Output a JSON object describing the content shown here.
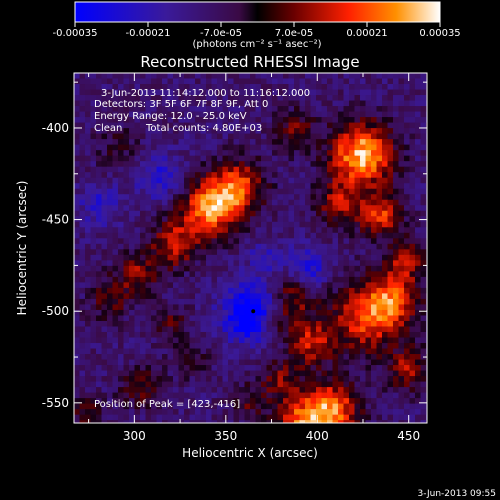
{
  "chart_data": {
    "type": "heatmap",
    "title": "Reconstructed RHESSI Image",
    "xlabel": "Heliocentric X (arcsec)",
    "ylabel": "Heliocentric Y (arcsec)",
    "xlim": [
      267,
      460
    ],
    "ylim": [
      -561,
      -370
    ],
    "xticks": [
      300,
      350,
      400,
      450
    ],
    "yticks": [
      -400,
      -450,
      -500,
      -550
    ],
    "colorbar": {
      "range": [
        -0.00035,
        0.00035
      ],
      "ticks": [
        "-0.00035",
        "-0.00021",
        "-7.0e-05",
        "7.0e-05",
        "0.00021",
        "0.00035"
      ],
      "unit_label": "(photons cm⁻² s⁻¹ asec⁻²)"
    },
    "annotations": {
      "time_range": "3-Jun-2013 11:14:12.000 to 11:16:12.000",
      "detectors": "Detectors: 3F 5F 6F 7F 8F 9F, Att 0",
      "energy_range": "Energy Range: 12.0 - 25.0 keV",
      "method": "Clean",
      "total_counts": "Total counts: 4.80E+03",
      "peak": "Position of Peak = [423,-416]"
    },
    "peak_position": [
      423,
      -416
    ],
    "blobs": [
      {
        "x": 340,
        "y": -443,
        "amp": 1.0,
        "r": 11
      },
      {
        "x": 355,
        "y": -430,
        "amp": 0.8,
        "r": 10
      },
      {
        "x": 320,
        "y": -462,
        "amp": 0.65,
        "r": 9
      },
      {
        "x": 300,
        "y": -478,
        "amp": 0.5,
        "r": 8
      },
      {
        "x": 285,
        "y": -492,
        "amp": 0.4,
        "r": 8
      },
      {
        "x": 423,
        "y": -413,
        "amp": 1.15,
        "r": 12
      },
      {
        "x": 410,
        "y": -440,
        "amp": 0.55,
        "r": 9
      },
      {
        "x": 433,
        "y": -446,
        "amp": 0.75,
        "r": 8
      },
      {
        "x": 425,
        "y": -502,
        "amp": 0.8,
        "r": 13
      },
      {
        "x": 440,
        "y": -492,
        "amp": 0.7,
        "r": 10
      },
      {
        "x": 447,
        "y": -470,
        "amp": 0.6,
        "r": 8
      },
      {
        "x": 395,
        "y": -515,
        "amp": 0.65,
        "r": 9
      },
      {
        "x": 385,
        "y": -490,
        "amp": 0.55,
        "r": 9
      },
      {
        "x": 375,
        "y": -505,
        "amp": 0.45,
        "r": 7
      },
      {
        "x": 378,
        "y": -536,
        "amp": 0.45,
        "r": 8
      },
      {
        "x": 405,
        "y": -553,
        "amp": 1.05,
        "r": 11
      },
      {
        "x": 388,
        "y": -560,
        "amp": 0.7,
        "r": 9
      },
      {
        "x": 302,
        "y": -540,
        "amp": 0.4,
        "r": 8
      },
      {
        "x": 330,
        "y": -525,
        "amp": 0.3,
        "r": 7
      },
      {
        "x": 272,
        "y": -555,
        "amp": 0.35,
        "r": 7
      },
      {
        "x": 290,
        "y": -410,
        "amp": 0.25,
        "r": 9
      },
      {
        "x": 386,
        "y": -400,
        "amp": 0.45,
        "r": 8
      },
      {
        "x": 448,
        "y": -530,
        "amp": 0.55,
        "r": 8
      },
      {
        "x": 360,
        "y": -548,
        "amp": 0.35,
        "r": 7
      },
      {
        "x": 318,
        "y": -505,
        "amp": 0.35,
        "r": 7
      }
    ],
    "negative_regions": [
      {
        "x": 363,
        "y": -500,
        "amp": -0.95,
        "r": 11
      },
      {
        "x": 393,
        "y": -475,
        "amp": -0.55,
        "r": 8
      },
      {
        "x": 312,
        "y": -425,
        "amp": -0.45,
        "r": 9
      },
      {
        "x": 280,
        "y": -440,
        "amp": -0.4,
        "r": 8
      },
      {
        "x": 370,
        "y": -470,
        "amp": -0.35,
        "r": 7
      }
    ]
  },
  "footer_timestamp": "3-Jun-2013 09:55"
}
